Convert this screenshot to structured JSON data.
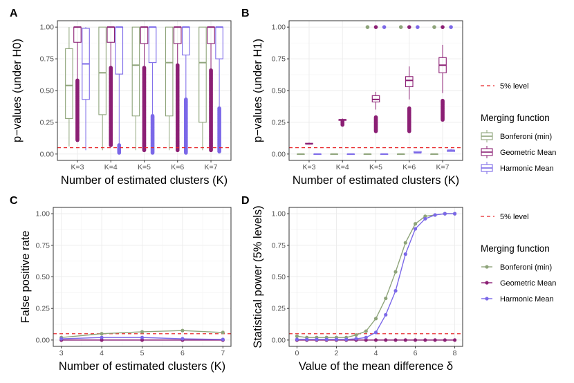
{
  "figure": {
    "panel_labels": [
      "A",
      "B",
      "C",
      "D"
    ],
    "colors": {
      "bonferroni": "#8ea47a",
      "geometric": "#8b1f74",
      "harmonic": "#7b68e8",
      "reference": "#e8282b",
      "grid": "#ebebeb",
      "axis": "#333333"
    },
    "legend_top": {
      "ref_label": "5% level",
      "title": "Merging function",
      "items": [
        "Bonferoni (min)",
        "Geometric Mean",
        "Harmonic Mean"
      ]
    },
    "legend_bottom": {
      "ref_label": "5% level",
      "title": "Merging function",
      "items": [
        "Bonferoni (min)",
        "Geometric Mean",
        "Harmonic Mean"
      ]
    }
  },
  "chart_data": [
    {
      "panel": "A",
      "type": "box",
      "ylabel": "p−values (under H0)",
      "xlabel": "Number of estimated clusters (K)",
      "categories": [
        "K=3",
        "K=4",
        "K=5",
        "K=6",
        "K=7"
      ],
      "yticks": [
        "0.00",
        "0.25",
        "0.50",
        "0.75",
        "1.00"
      ],
      "ylim": [
        0,
        1
      ],
      "reference_line": 0.05,
      "series": [
        {
          "name": "Bonferoni (min)",
          "boxes": [
            {
              "low": 0.06,
              "q1": 0.28,
              "median": 0.54,
              "q3": 0.83,
              "high": 1.0,
              "outliers": []
            },
            {
              "low": 0.03,
              "q1": 0.31,
              "median": 0.64,
              "q3": 1.0,
              "high": 1.0,
              "outliers": []
            },
            {
              "low": 0.03,
              "q1": 0.3,
              "median": 0.7,
              "q3": 1.0,
              "high": 1.0,
              "outliers": []
            },
            {
              "low": 0.03,
              "q1": 0.3,
              "median": 0.72,
              "q3": 1.0,
              "high": 1.0,
              "outliers": []
            },
            {
              "low": 0.03,
              "q1": 0.25,
              "median": 0.72,
              "q3": 1.0,
              "high": 1.0,
              "outliers": []
            }
          ]
        },
        {
          "name": "Geometric Mean",
          "boxes": [
            {
              "low": 0.11,
              "q1": 0.88,
              "median": 1.0,
              "q3": 1.0,
              "high": 1.0,
              "outliers_range": [
                0.11,
                0.58
              ]
            },
            {
              "low": 0.07,
              "q1": 0.88,
              "median": 1.0,
              "q3": 1.0,
              "high": 1.0,
              "outliers_range": [
                0.07,
                0.68
              ]
            },
            {
              "low": 0.03,
              "q1": 0.87,
              "median": 1.0,
              "q3": 1.0,
              "high": 1.0,
              "outliers_range": [
                0.03,
                0.68
              ]
            },
            {
              "low": 0.03,
              "q1": 0.87,
              "median": 1.0,
              "q3": 1.0,
              "high": 1.0,
              "outliers_range": [
                0.03,
                0.7
              ]
            },
            {
              "low": 0.03,
              "q1": 0.87,
              "median": 1.0,
              "q3": 1.0,
              "high": 1.0,
              "outliers_range": [
                0.03,
                0.66
              ]
            }
          ]
        },
        {
          "name": "Harmonic Mean",
          "boxes": [
            {
              "low": 0.03,
              "q1": 0.43,
              "median": 0.71,
              "q3": 0.99,
              "high": 1.0,
              "outliers": []
            },
            {
              "low": 0.03,
              "q1": 0.63,
              "median": 1.0,
              "q3": 1.0,
              "high": 1.0,
              "outliers_range": [
                0.01,
                0.07
              ]
            },
            {
              "low": 0.03,
              "q1": 0.72,
              "median": 1.0,
              "q3": 1.0,
              "high": 1.0,
              "outliers_range": [
                0.01,
                0.3
              ]
            },
            {
              "low": 0.03,
              "q1": 0.78,
              "median": 1.0,
              "q3": 1.0,
              "high": 1.0,
              "outliers_range": [
                0.01,
                0.43
              ]
            },
            {
              "low": 0.03,
              "q1": 0.75,
              "median": 1.0,
              "q3": 1.0,
              "high": 1.0,
              "outliers_range": [
                0.02,
                0.36
              ]
            }
          ]
        }
      ]
    },
    {
      "panel": "B",
      "type": "box",
      "ylabel": "p−values (under H1)",
      "xlabel": "Number of estimated clusters (K)",
      "categories": [
        "K=3",
        "K=4",
        "K=5",
        "K=6",
        "K=7"
      ],
      "yticks": [
        "0.00",
        "0.25",
        "0.50",
        "0.75",
        "1.00"
      ],
      "ylim": [
        0,
        1
      ],
      "reference_line": 0.05,
      "series": [
        {
          "name": "Bonferoni (min)",
          "boxes": [
            {
              "low": 0.0,
              "q1": 0.0,
              "median": 0.0,
              "q3": 0.0,
              "high": 0.0,
              "outliers": []
            },
            {
              "low": 0.0,
              "q1": 0.0,
              "median": 0.0,
              "q3": 0.0,
              "high": 0.0,
              "outliers": []
            },
            {
              "low": 0.0,
              "q1": 0.0,
              "median": 0.0,
              "q3": 0.0,
              "high": 0.0,
              "outliers": [
                1.0
              ]
            },
            {
              "low": 0.0,
              "q1": 0.0,
              "median": 0.0,
              "q3": 0.0,
              "high": 0.0,
              "outliers": [
                1.0
              ]
            },
            {
              "low": 0.0,
              "q1": 0.0,
              "median": 0.0,
              "q3": 0.0,
              "high": 0.0,
              "outliers": [
                1.0
              ]
            }
          ]
        },
        {
          "name": "Geometric Mean",
          "boxes": [
            {
              "low": 0.075,
              "q1": 0.08,
              "median": 0.08,
              "q3": 0.085,
              "high": 0.09,
              "outliers": []
            },
            {
              "low": 0.26,
              "q1": 0.265,
              "median": 0.27,
              "q3": 0.272,
              "high": 0.28,
              "outliers_range": [
                0.23,
                0.26
              ]
            },
            {
              "low": 0.35,
              "q1": 0.41,
              "median": 0.43,
              "q3": 0.46,
              "high": 0.49,
              "outliers_range": [
                0.18,
                0.29
              ],
              "outliers": [
                1.0
              ]
            },
            {
              "low": 0.43,
              "q1": 0.53,
              "median": 0.58,
              "q3": 0.61,
              "high": 0.69,
              "outliers_range": [
                0.18,
                0.36
              ],
              "outliers": [
                1.0
              ]
            },
            {
              "low": 0.48,
              "q1": 0.64,
              "median": 0.7,
              "q3": 0.76,
              "high": 0.86,
              "outliers_range": [
                0.27,
                0.42
              ],
              "outliers": [
                1.0
              ]
            }
          ]
        },
        {
          "name": "Harmonic Mean",
          "boxes": [
            {
              "low": 0.0,
              "q1": 0.0,
              "median": 0.0,
              "q3": 0.0,
              "high": 0.0,
              "outliers": []
            },
            {
              "low": 0.0,
              "q1": 0.0,
              "median": 0.0,
              "q3": 0.0,
              "high": 0.0,
              "outliers": []
            },
            {
              "low": 0.0,
              "q1": 0.0,
              "median": 0.0,
              "q3": 0.0,
              "high": 0.0,
              "outliers": [
                1.0
              ]
            },
            {
              "low": 0.01,
              "q1": 0.01,
              "median": 0.01,
              "q3": 0.02,
              "high": 0.02,
              "outliers": [
                1.0
              ]
            },
            {
              "low": 0.02,
              "q1": 0.02,
              "median": 0.03,
              "q3": 0.03,
              "high": 0.04,
              "outliers": [
                1.0
              ]
            }
          ]
        }
      ]
    },
    {
      "panel": "C",
      "type": "line",
      "ylabel": "False positive rate",
      "xlabel": "Number of estimated clusters (K)",
      "x": [
        3,
        4,
        5,
        6,
        7
      ],
      "xticks": [
        "3",
        "4",
        "5",
        "6",
        "7"
      ],
      "yticks": [
        "0.00",
        "0.25",
        "0.50",
        "0.75",
        "1.00"
      ],
      "xlim": [
        2.8,
        7.2
      ],
      "ylim": [
        -0.05,
        1.05
      ],
      "reference_line": 0.05,
      "series": [
        {
          "name": "Bonferoni (min)",
          "values": [
            0.02,
            0.05,
            0.065,
            0.075,
            0.06
          ]
        },
        {
          "name": "Geometric Mean",
          "values": [
            0.0,
            0.0,
            0.0,
            0.0,
            0.0
          ]
        },
        {
          "name": "Harmonic Mean",
          "values": [
            0.01,
            0.02,
            0.02,
            0.01,
            0.005
          ]
        }
      ]
    },
    {
      "panel": "D",
      "type": "line",
      "ylabel": "Statistical power (5% levels)",
      "xlabel": "Value of the mean difference δ",
      "x": [
        0,
        0.5,
        1,
        1.5,
        2,
        2.5,
        3,
        3.5,
        4,
        4.5,
        5,
        5.5,
        6,
        6.5,
        7,
        7.5,
        8
      ],
      "xticks": [
        "0",
        "2",
        "4",
        "6",
        "8"
      ],
      "yticks": [
        "0.00",
        "0.25",
        "0.50",
        "0.75",
        "1.00"
      ],
      "xlim": [
        -0.4,
        8.4
      ],
      "ylim": [
        -0.05,
        1.05
      ],
      "reference_line": 0.05,
      "series": [
        {
          "name": "Bonferoni (min)",
          "values": [
            0.03,
            0.02,
            0.02,
            0.02,
            0.02,
            0.02,
            0.04,
            0.07,
            0.17,
            0.33,
            0.54,
            0.77,
            0.92,
            0.98,
            0.99,
            1.0,
            1.0
          ]
        },
        {
          "name": "Geometric Mean",
          "values": [
            0.0,
            0.0,
            0.0,
            0.0,
            0.0,
            0.0,
            0.0,
            0.0,
            0.0,
            0.0,
            0.0,
            0.0,
            0.0,
            0.0,
            0.0,
            0.0,
            0.0
          ]
        },
        {
          "name": "Harmonic Mean",
          "values": [
            0.005,
            0.005,
            0.005,
            0.005,
            0.005,
            0.005,
            0.01,
            0.02,
            0.06,
            0.2,
            0.39,
            0.68,
            0.88,
            0.96,
            0.99,
            1.0,
            1.0
          ]
        }
      ]
    }
  ]
}
